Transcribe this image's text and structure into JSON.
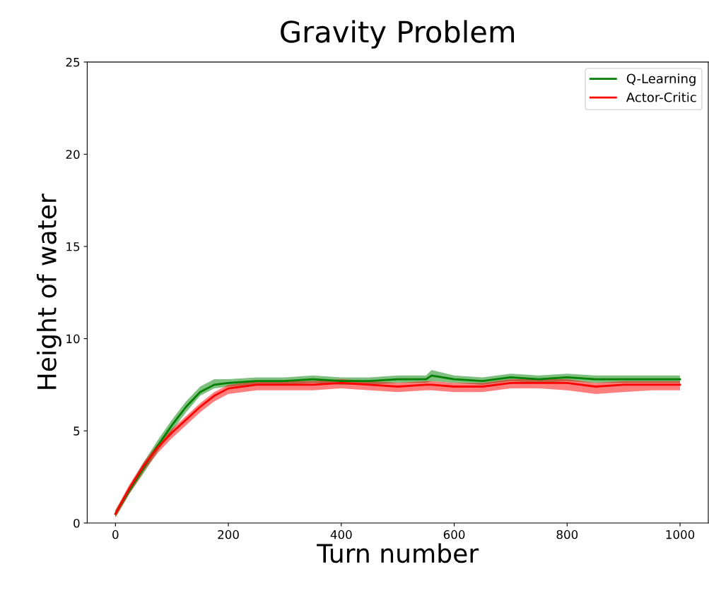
{
  "chart_data": {
    "type": "line",
    "title": "Gravity Problem",
    "xlabel": "Turn number",
    "ylabel": "Height of water",
    "xlim": [
      -50,
      1050
    ],
    "xticks": [
      0,
      200,
      400,
      600,
      800,
      1000
    ],
    "ylim": [
      0,
      25
    ],
    "yticks": [
      0,
      5,
      10,
      15,
      20,
      25
    ],
    "grid": false,
    "legend": "top right",
    "x": [
      0,
      25,
      50,
      75,
      100,
      125,
      150,
      175,
      200,
      250,
      300,
      350,
      400,
      450,
      500,
      550,
      560,
      600,
      650,
      700,
      750,
      800,
      850,
      900,
      950,
      1000
    ],
    "series": [
      {
        "name": "Q-Learning",
        "color": "#008000",
        "values": [
          0.5,
          1.8,
          3.0,
          4.2,
          5.3,
          6.3,
          7.1,
          7.5,
          7.6,
          7.7,
          7.7,
          7.8,
          7.7,
          7.7,
          7.8,
          7.8,
          8.0,
          7.8,
          7.7,
          7.9,
          7.8,
          7.9,
          7.8,
          7.8,
          7.8,
          7.8
        ],
        "lower": [
          0.3,
          1.6,
          2.7,
          3.9,
          5.0,
          6.0,
          6.9,
          7.3,
          7.4,
          7.5,
          7.5,
          7.6,
          7.5,
          7.5,
          7.6,
          7.6,
          7.7,
          7.6,
          7.5,
          7.7,
          7.6,
          7.7,
          7.6,
          7.6,
          7.6,
          7.6
        ],
        "upper": [
          0.7,
          2.0,
          3.3,
          4.5,
          5.6,
          6.6,
          7.4,
          7.8,
          7.8,
          7.9,
          7.9,
          8.0,
          7.9,
          7.9,
          8.0,
          8.0,
          8.3,
          8.0,
          7.9,
          8.1,
          8.0,
          8.1,
          8.0,
          8.0,
          8.0,
          8.0
        ]
      },
      {
        "name": "Actor-Critic",
        "color": "#ff0000",
        "values": [
          0.5,
          1.9,
          3.1,
          4.1,
          4.9,
          5.6,
          6.3,
          6.9,
          7.3,
          7.5,
          7.5,
          7.5,
          7.6,
          7.5,
          7.4,
          7.5,
          7.5,
          7.4,
          7.4,
          7.6,
          7.6,
          7.6,
          7.4,
          7.5,
          7.5,
          7.5
        ],
        "lower": [
          0.3,
          1.6,
          2.8,
          3.8,
          4.6,
          5.3,
          6.0,
          6.6,
          7.0,
          7.2,
          7.2,
          7.2,
          7.3,
          7.2,
          7.1,
          7.2,
          7.2,
          7.1,
          7.1,
          7.3,
          7.3,
          7.2,
          7.0,
          7.1,
          7.2,
          7.2
        ],
        "upper": [
          0.7,
          2.1,
          3.3,
          4.3,
          5.1,
          5.8,
          6.5,
          7.1,
          7.5,
          7.7,
          7.7,
          7.7,
          7.8,
          7.7,
          7.6,
          7.7,
          7.7,
          7.6,
          7.6,
          7.8,
          7.8,
          7.8,
          7.6,
          7.7,
          7.7,
          7.7
        ]
      }
    ]
  }
}
